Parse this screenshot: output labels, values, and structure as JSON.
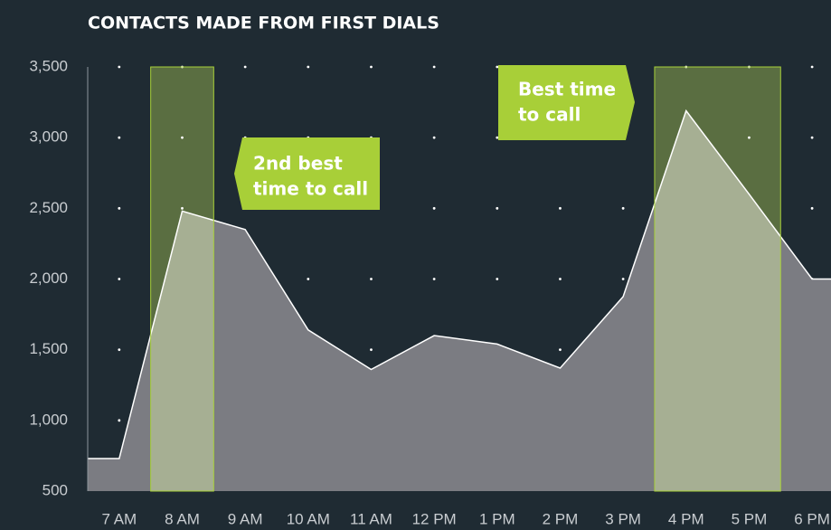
{
  "chart_data": {
    "type": "area",
    "title": "CONTACTS MADE FROM FIRST DIALS",
    "x": [
      6.5,
      7,
      8,
      9,
      10,
      11,
      12,
      13,
      14,
      15,
      16,
      17,
      18,
      18.3
    ],
    "series": [
      {
        "color": "#7b7c82",
        "line_color": "#ffffff",
        "values": [
          730,
          730,
          2480,
          2350,
          1640,
          1360,
          1600,
          1540,
          1370,
          1875,
          3190,
          2600,
          2000,
          2000
        ]
      }
    ],
    "xlim": [
      6.5,
      18.3
    ],
    "xticks": [
      {
        "value": 7,
        "label": "7 AM"
      },
      {
        "value": 8,
        "label": "8 AM"
      },
      {
        "value": 9,
        "label": "9 AM"
      },
      {
        "value": 10,
        "label": "10 AM"
      },
      {
        "value": 11,
        "label": "11 AM"
      },
      {
        "value": 12,
        "label": "12 PM"
      },
      {
        "value": 13,
        "label": "1 PM"
      },
      {
        "value": 14,
        "label": "2 PM"
      },
      {
        "value": 15,
        "label": "3 PM"
      },
      {
        "value": 16,
        "label": "4 PM"
      },
      {
        "value": 17,
        "label": "5 PM"
      },
      {
        "value": 18,
        "label": "6 PM"
      }
    ],
    "ylim": [
      500,
      3500
    ],
    "yticks": [
      {
        "value": 500,
        "label": "500"
      },
      {
        "value": 1000,
        "label": "1,000"
      },
      {
        "value": 1500,
        "label": "1,500"
      },
      {
        "value": 2000,
        "label": "2,000"
      },
      {
        "value": 2500,
        "label": "2,500"
      },
      {
        "value": 3000,
        "label": "3,000"
      },
      {
        "value": 3500,
        "label": "3,500"
      }
    ],
    "grid": "dots",
    "highlights": [
      {
        "range": [
          7.5,
          8.5
        ],
        "color": "#5a6e41",
        "border": "#a8d13a"
      },
      {
        "range": [
          15.5,
          17.5
        ],
        "color": "#5a6e41",
        "border": "#a8d13a"
      }
    ],
    "annotations": [
      {
        "lines": [
          "2nd best",
          "time to call"
        ],
        "color": "#a8cf38"
      },
      {
        "lines": [
          "Best time",
          "to call"
        ],
        "color": "#a8cf38"
      }
    ]
  }
}
